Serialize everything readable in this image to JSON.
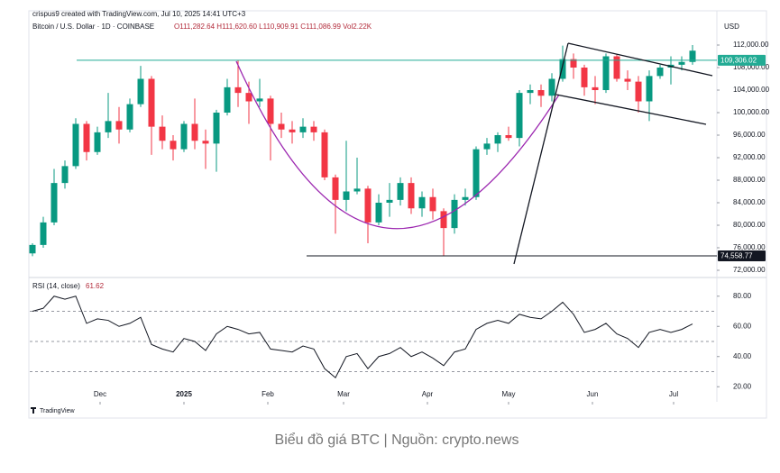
{
  "header": {
    "author": "crispus9 created with TradingView.com, Jul 10, 2025 14:41 UTC+3",
    "symbol": "Bitcoin / U.S. Dollar · 1D · COINBASE",
    "ohlc": "O111,282.64 H111,620.60 L110,909.91 C111,086.99 Vol2.22K",
    "currency": "USD"
  },
  "footer": {
    "brand": "TradingView",
    "caption": "Biểu đồ giá BTC | Nguồn: crypto.news"
  },
  "chart_data": [
    {
      "type": "candlestick",
      "up_color": "#089981",
      "down_color": "#f23645",
      "open": [
        75000,
        76500,
        80500,
        87500,
        90500,
        98000,
        93000,
        96500,
        98500,
        97000,
        101500,
        106000,
        97500,
        95000,
        93500,
        98000,
        95000,
        94500,
        100000,
        104500,
        103500,
        102000,
        102500,
        98000,
        97000,
        96500,
        97500,
        96500,
        88500,
        84500,
        86000,
        86500,
        80500,
        84000,
        84500,
        87500,
        83000,
        85000,
        82500,
        79500,
        84500,
        85000,
        93500,
        94500,
        96000,
        95500,
        103500,
        104000,
        103000,
        106000,
        109500,
        108000,
        104500,
        104000,
        110000,
        106000,
        105500,
        102000,
        106500,
        108000,
        108500,
        109000
      ],
      "high": [
        76800,
        81500,
        90000,
        91500,
        99000,
        98500,
        97500,
        103500,
        101000,
        102500,
        108300,
        106500,
        99500,
        96000,
        98500,
        102500,
        97000,
        100500,
        106000,
        109300,
        105500,
        106000,
        103000,
        100000,
        98500,
        99000,
        98500,
        97000,
        89000,
        95000,
        92000,
        87000,
        85500,
        87500,
        88500,
        88500,
        86000,
        86500,
        83000,
        85500,
        86500,
        94000,
        95500,
        96500,
        97500,
        104000,
        105000,
        105000,
        107000,
        111900,
        110500,
        108500,
        106500,
        110500,
        110300,
        107500,
        106500,
        107500,
        108500,
        110000,
        110000,
        112000
      ],
      "low": [
        74500,
        76000,
        80000,
        86500,
        90000,
        91500,
        92500,
        95500,
        94500,
        96500,
        101000,
        92500,
        93500,
        91500,
        93000,
        93500,
        90000,
        89500,
        99500,
        101000,
        98000,
        101000,
        91500,
        95500,
        94500,
        95500,
        95000,
        88000,
        78500,
        82500,
        85500,
        76800,
        80000,
        81500,
        83500,
        82000,
        81500,
        81000,
        74500,
        78500,
        83500,
        84500,
        92500,
        93000,
        95000,
        94000,
        101500,
        101000,
        102000,
        105500,
        106000,
        103000,
        101500,
        103500,
        105500,
        104000,
        100000,
        98500,
        106000,
        105000,
        107500,
        108500
      ],
      "close": [
        76500,
        80500,
        87500,
        90500,
        98000,
        93000,
        96500,
        98500,
        97000,
        101500,
        106000,
        97500,
        95000,
        93500,
        98000,
        95000,
        94500,
        100000,
        104500,
        103500,
        102000,
        102500,
        98000,
        97000,
        96500,
        97500,
        96500,
        88500,
        84500,
        86000,
        86500,
        80500,
        84000,
        84500,
        87500,
        83000,
        85000,
        82500,
        79500,
        84500,
        85000,
        93500,
        94500,
        96000,
        95500,
        103500,
        104000,
        103000,
        106000,
        109500,
        108000,
        104500,
        104000,
        110000,
        106000,
        105500,
        102000,
        106500,
        108000,
        108500,
        109000,
        111000
      ],
      "xlim": [
        -0.25,
        63.25
      ],
      "ylim": [
        71200,
        116000
      ],
      "yticks": [
        {
          "value": 72000,
          "label": "72,000.00"
        },
        {
          "value": 76000,
          "label": "76,000.00"
        },
        {
          "value": 80000,
          "label": "80,000.00"
        },
        {
          "value": 84000,
          "label": "84,000.00"
        },
        {
          "value": 88000,
          "label": "88,000.00"
        },
        {
          "value": 92000,
          "label": "92,000.00"
        },
        {
          "value": 96000,
          "label": "96,000.00"
        },
        {
          "value": 100000,
          "label": "100,000.00"
        },
        {
          "value": 104000,
          "label": "104,000.00"
        },
        {
          "value": 108000,
          "label": "108,000.00"
        },
        {
          "value": 112000,
          "label": "112,000.00"
        }
      ],
      "price_labels": [
        {
          "value": 109306.02,
          "label": "109,306.02",
          "color": "#22ab94"
        },
        {
          "value": 74558.77,
          "label": "74,558.77",
          "color": "#131722"
        }
      ]
    },
    {
      "type": "line",
      "title": "RSI (14, close)",
      "color": "#131722",
      "values": [
        70,
        72,
        80,
        78,
        80,
        62,
        65,
        64,
        60,
        62,
        66,
        48,
        45,
        43,
        52,
        50,
        44,
        55,
        60,
        58,
        55,
        56,
        45,
        44,
        43,
        47,
        45,
        32,
        26,
        40,
        42,
        32,
        40,
        42,
        46,
        40,
        43,
        39,
        34,
        43,
        45,
        58,
        62,
        64,
        62,
        68,
        66,
        65,
        70,
        76,
        68,
        56,
        58,
        62,
        55,
        52,
        46,
        56,
        58,
        56,
        58,
        61.62
      ],
      "xlim": [
        -0.25,
        63.25
      ],
      "ylim": [
        10,
        90
      ],
      "yticks": [
        {
          "value": 20,
          "label": "20.00"
        },
        {
          "value": 40,
          "label": "40.00"
        },
        {
          "value": 60,
          "label": "60.00"
        },
        {
          "value": 80,
          "label": "80.00"
        }
      ],
      "levels": [
        70,
        50,
        30
      ],
      "xticks": [
        {
          "value": 6.25,
          "label": "Dec"
        },
        {
          "value": 14,
          "label": "2025"
        },
        {
          "value": 21.75,
          "label": "Feb"
        },
        {
          "value": 28.75,
          "label": "Mar"
        },
        {
          "value": 36.5,
          "label": "Apr"
        },
        {
          "value": 44,
          "label": "May"
        },
        {
          "value": 51.75,
          "label": "Jun"
        },
        {
          "value": 59.25,
          "label": "Jul"
        }
      ]
    }
  ]
}
